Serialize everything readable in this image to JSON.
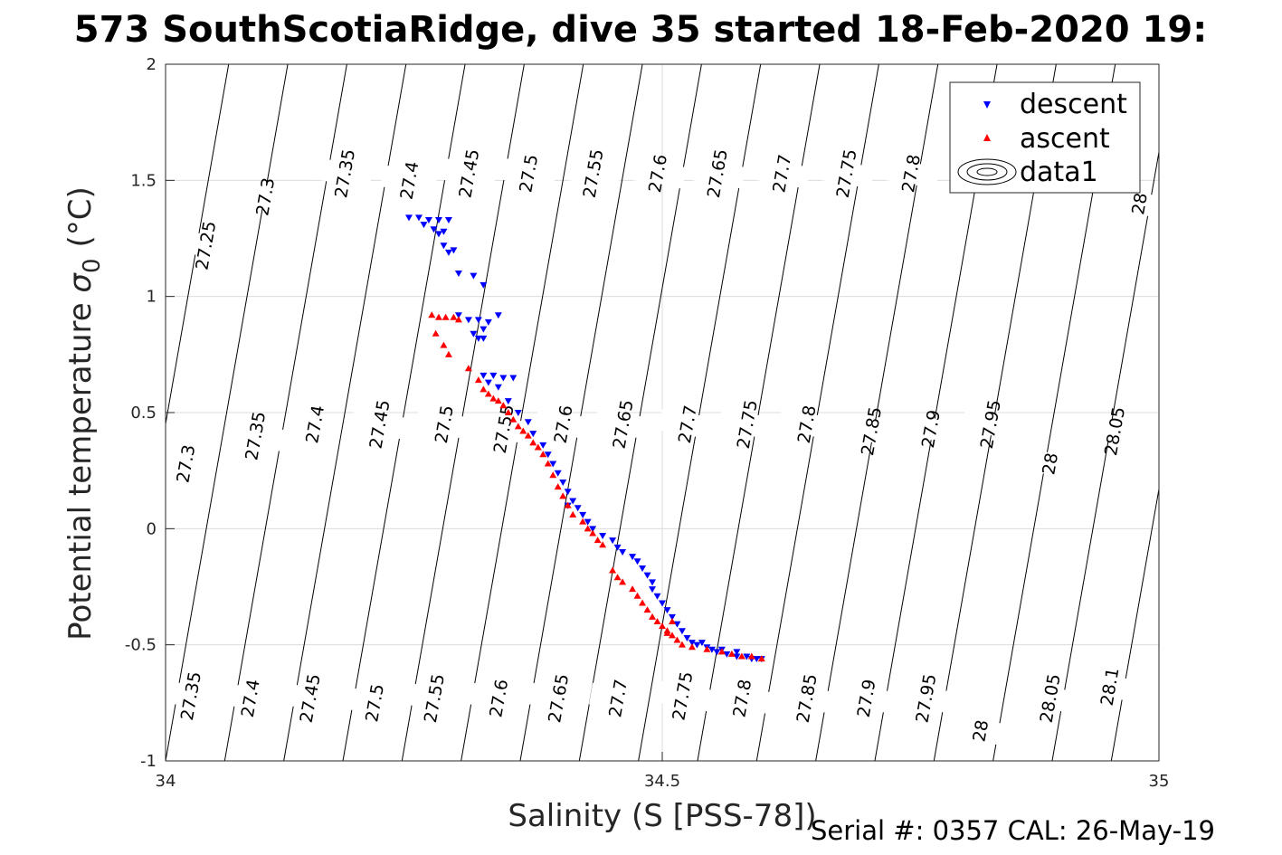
{
  "title": "573 SouthScotiaRidge, dive 35 started 18-Feb-2020 19:",
  "footer": {
    "serial": "Serial #: 0357  CAL: 26-May-19"
  },
  "chart_data": {
    "type": "scatter",
    "xlabel": "Salinity (S [PSS-78])",
    "ylabel": "Potential temperature σ0 (°C)",
    "ylabel_main": "Potential temperature",
    "ylabel_sigma": "σ",
    "ylabel_sub": "0",
    "ylabel_unit": "(°C)",
    "xlim": [
      34,
      35
    ],
    "ylim": [
      -1,
      2
    ],
    "xticks": [
      "34",
      "34.5",
      "35"
    ],
    "yticks": [
      "-1",
      "-0.5",
      "0",
      "0.5",
      "1",
      "1.5",
      "2"
    ],
    "grid": true,
    "legend": {
      "placement": "top-right",
      "entries": [
        "descent",
        "ascent",
        "data1"
      ]
    },
    "colors": {
      "descent": "#0000ff",
      "ascent": "#ff0000",
      "contour": "#000000"
    },
    "contour_labels": [
      {
        "t": "27.25",
        "s": 34.04,
        "th": 1.22
      },
      {
        "t": "27.3",
        "s": 34.1,
        "th": 1.43
      },
      {
        "t": "27.35",
        "s": 34.18,
        "th": 1.53
      },
      {
        "t": "27.4",
        "s": 34.245,
        "th": 1.5
      },
      {
        "t": "27.45",
        "s": 34.305,
        "th": 1.53
      },
      {
        "t": "27.5",
        "s": 34.365,
        "th": 1.53
      },
      {
        "t": "27.55",
        "s": 34.43,
        "th": 1.53
      },
      {
        "t": "27.6",
        "s": 34.495,
        "th": 1.53
      },
      {
        "t": "27.65",
        "s": 34.555,
        "th": 1.53
      },
      {
        "t": "27.7",
        "s": 34.62,
        "th": 1.53
      },
      {
        "t": "27.75",
        "s": 34.685,
        "th": 1.53
      },
      {
        "t": "27.8",
        "s": 34.75,
        "th": 1.53
      },
      {
        "t": "28",
        "s": 34.98,
        "th": 1.4
      },
      {
        "t": "27.3",
        "s": 34.02,
        "th": 0.28
      },
      {
        "t": "27.35",
        "s": 34.09,
        "th": 0.4
      },
      {
        "t": "27.4",
        "s": 34.15,
        "th": 0.45
      },
      {
        "t": "27.45",
        "s": 34.215,
        "th": 0.45
      },
      {
        "t": "27.5",
        "s": 34.28,
        "th": 0.45
      },
      {
        "t": "27.55",
        "s": 34.34,
        "th": 0.43
      },
      {
        "t": "27.6",
        "s": 34.4,
        "th": 0.45
      },
      {
        "t": "27.65",
        "s": 34.46,
        "th": 0.45
      },
      {
        "t": "27.7",
        "s": 34.525,
        "th": 0.45
      },
      {
        "t": "27.75",
        "s": 34.585,
        "th": 0.45
      },
      {
        "t": "27.8",
        "s": 34.645,
        "th": 0.45
      },
      {
        "t": "27.85",
        "s": 34.71,
        "th": 0.42
      },
      {
        "t": "27.9",
        "s": 34.77,
        "th": 0.43
      },
      {
        "t": "27.95",
        "s": 34.83,
        "th": 0.45
      },
      {
        "t": "28",
        "s": 34.89,
        "th": 0.28
      },
      {
        "t": "28.05",
        "s": 34.955,
        "th": 0.42
      },
      {
        "t": "27.35",
        "s": 34.025,
        "th": -0.72
      },
      {
        "t": "27.4",
        "s": 34.085,
        "th": -0.73
      },
      {
        "t": "27.45",
        "s": 34.145,
        "th": -0.73
      },
      {
        "t": "27.5",
        "s": 34.21,
        "th": -0.75
      },
      {
        "t": "27.55",
        "s": 34.27,
        "th": -0.73
      },
      {
        "t": "27.6",
        "s": 34.335,
        "th": -0.73
      },
      {
        "t": "27.65",
        "s": 34.395,
        "th": -0.73
      },
      {
        "t": "27.7",
        "s": 34.455,
        "th": -0.73
      },
      {
        "t": "27.75",
        "s": 34.52,
        "th": -0.72
      },
      {
        "t": "27.8",
        "s": 34.58,
        "th": -0.73
      },
      {
        "t": "27.85",
        "s": 34.645,
        "th": -0.73
      },
      {
        "t": "27.9",
        "s": 34.705,
        "th": -0.73
      },
      {
        "t": "27.95",
        "s": 34.765,
        "th": -0.73
      },
      {
        "t": "28",
        "s": 34.82,
        "th": -0.87
      },
      {
        "t": "28.05",
        "s": 34.89,
        "th": -0.73
      },
      {
        "t": "28.1",
        "s": 34.95,
        "th": -0.68
      }
    ],
    "series": [
      {
        "name": "descent",
        "marker": "triangle-down",
        "points": [
          [
            34.245,
            1.34
          ],
          [
            34.255,
            1.34
          ],
          [
            34.265,
            1.33
          ],
          [
            34.275,
            1.33
          ],
          [
            34.285,
            1.33
          ],
          [
            34.26,
            1.31
          ],
          [
            34.27,
            1.29
          ],
          [
            34.28,
            1.28
          ],
          [
            34.275,
            1.27
          ],
          [
            34.28,
            1.22
          ],
          [
            34.285,
            1.19
          ],
          [
            34.29,
            1.2
          ],
          [
            34.295,
            1.1
          ],
          [
            34.31,
            1.09
          ],
          [
            34.32,
            1.05
          ],
          [
            34.295,
            0.92
          ],
          [
            34.305,
            0.9
          ],
          [
            34.315,
            0.9
          ],
          [
            34.325,
            0.89
          ],
          [
            34.32,
            0.86
          ],
          [
            34.31,
            0.84
          ],
          [
            34.315,
            0.82
          ],
          [
            34.32,
            0.82
          ],
          [
            34.335,
            0.92
          ],
          [
            34.32,
            0.66
          ],
          [
            34.33,
            0.66
          ],
          [
            34.34,
            0.65
          ],
          [
            34.35,
            0.65
          ],
          [
            34.325,
            0.63
          ],
          [
            34.335,
            0.61
          ],
          [
            34.345,
            0.55
          ],
          [
            34.355,
            0.5
          ],
          [
            34.365,
            0.46
          ],
          [
            34.37,
            0.41
          ],
          [
            34.38,
            0.36
          ],
          [
            34.385,
            0.32
          ],
          [
            34.39,
            0.28
          ],
          [
            34.395,
            0.24
          ],
          [
            34.4,
            0.2
          ],
          [
            34.405,
            0.16
          ],
          [
            34.41,
            0.12
          ],
          [
            34.405,
            0.1
          ],
          [
            34.415,
            0.09
          ],
          [
            34.42,
            0.06
          ],
          [
            34.425,
            0.03
          ],
          [
            34.43,
            0.0
          ],
          [
            34.44,
            -0.03
          ],
          [
            34.45,
            -0.05
          ],
          [
            34.455,
            -0.08
          ],
          [
            34.46,
            -0.1
          ],
          [
            34.47,
            -0.12
          ],
          [
            34.475,
            -0.14
          ],
          [
            34.48,
            -0.17
          ],
          [
            34.485,
            -0.2
          ],
          [
            34.49,
            -0.23
          ],
          [
            34.49,
            -0.26
          ],
          [
            34.495,
            -0.29
          ],
          [
            34.5,
            -0.32
          ],
          [
            34.505,
            -0.35
          ],
          [
            34.51,
            -0.38
          ],
          [
            34.515,
            -0.41
          ],
          [
            34.52,
            -0.44
          ],
          [
            34.525,
            -0.47
          ],
          [
            34.53,
            -0.49
          ],
          [
            34.535,
            -0.5
          ],
          [
            34.54,
            -0.49
          ],
          [
            34.545,
            -0.51
          ],
          [
            34.55,
            -0.52
          ],
          [
            34.555,
            -0.53
          ],
          [
            34.565,
            -0.54
          ],
          [
            34.575,
            -0.55
          ],
          [
            34.585,
            -0.55
          ],
          [
            34.59,
            -0.56
          ],
          [
            34.595,
            -0.56
          ],
          [
            34.6,
            -0.56
          ],
          [
            34.575,
            -0.53
          ],
          [
            34.56,
            -0.52
          ]
        ]
      },
      {
        "name": "ascent",
        "marker": "triangle-up",
        "points": [
          [
            34.268,
            0.92
          ],
          [
            34.275,
            0.91
          ],
          [
            34.282,
            0.91
          ],
          [
            34.29,
            0.91
          ],
          [
            34.295,
            0.9
          ],
          [
            34.272,
            0.84
          ],
          [
            34.28,
            0.79
          ],
          [
            34.285,
            0.75
          ],
          [
            34.305,
            0.69
          ],
          [
            34.315,
            0.64
          ],
          [
            34.32,
            0.6
          ],
          [
            34.325,
            0.58
          ],
          [
            34.33,
            0.56
          ],
          [
            34.335,
            0.55
          ],
          [
            34.34,
            0.53
          ],
          [
            34.345,
            0.5
          ],
          [
            34.35,
            0.47
          ],
          [
            34.355,
            0.44
          ],
          [
            34.36,
            0.42
          ],
          [
            34.365,
            0.4
          ],
          [
            34.37,
            0.37
          ],
          [
            34.375,
            0.35
          ],
          [
            34.38,
            0.32
          ],
          [
            34.385,
            0.28
          ],
          [
            34.39,
            0.23
          ],
          [
            34.395,
            0.18
          ],
          [
            34.4,
            0.14
          ],
          [
            34.405,
            0.1
          ],
          [
            34.41,
            0.06
          ],
          [
            34.42,
            0.03
          ],
          [
            34.425,
            0.0
          ],
          [
            34.43,
            -0.02
          ],
          [
            34.435,
            -0.05
          ],
          [
            34.44,
            -0.07
          ],
          [
            34.45,
            -0.18
          ],
          [
            34.455,
            -0.21
          ],
          [
            34.46,
            -0.23
          ],
          [
            34.47,
            -0.26
          ],
          [
            34.475,
            -0.29
          ],
          [
            34.48,
            -0.32
          ],
          [
            34.485,
            -0.35
          ],
          [
            34.49,
            -0.38
          ],
          [
            34.495,
            -0.4
          ],
          [
            34.5,
            -0.42
          ],
          [
            34.505,
            -0.44
          ],
          [
            34.51,
            -0.46
          ],
          [
            34.515,
            -0.48
          ],
          [
            34.52,
            -0.5
          ],
          [
            34.53,
            -0.51
          ],
          [
            34.545,
            -0.52
          ],
          [
            34.56,
            -0.53
          ],
          [
            34.57,
            -0.54
          ],
          [
            34.58,
            -0.55
          ],
          [
            34.59,
            -0.55
          ],
          [
            34.6,
            -0.56
          ],
          [
            34.505,
            -0.45
          ],
          [
            34.51,
            -0.4
          ]
        ]
      }
    ]
  }
}
